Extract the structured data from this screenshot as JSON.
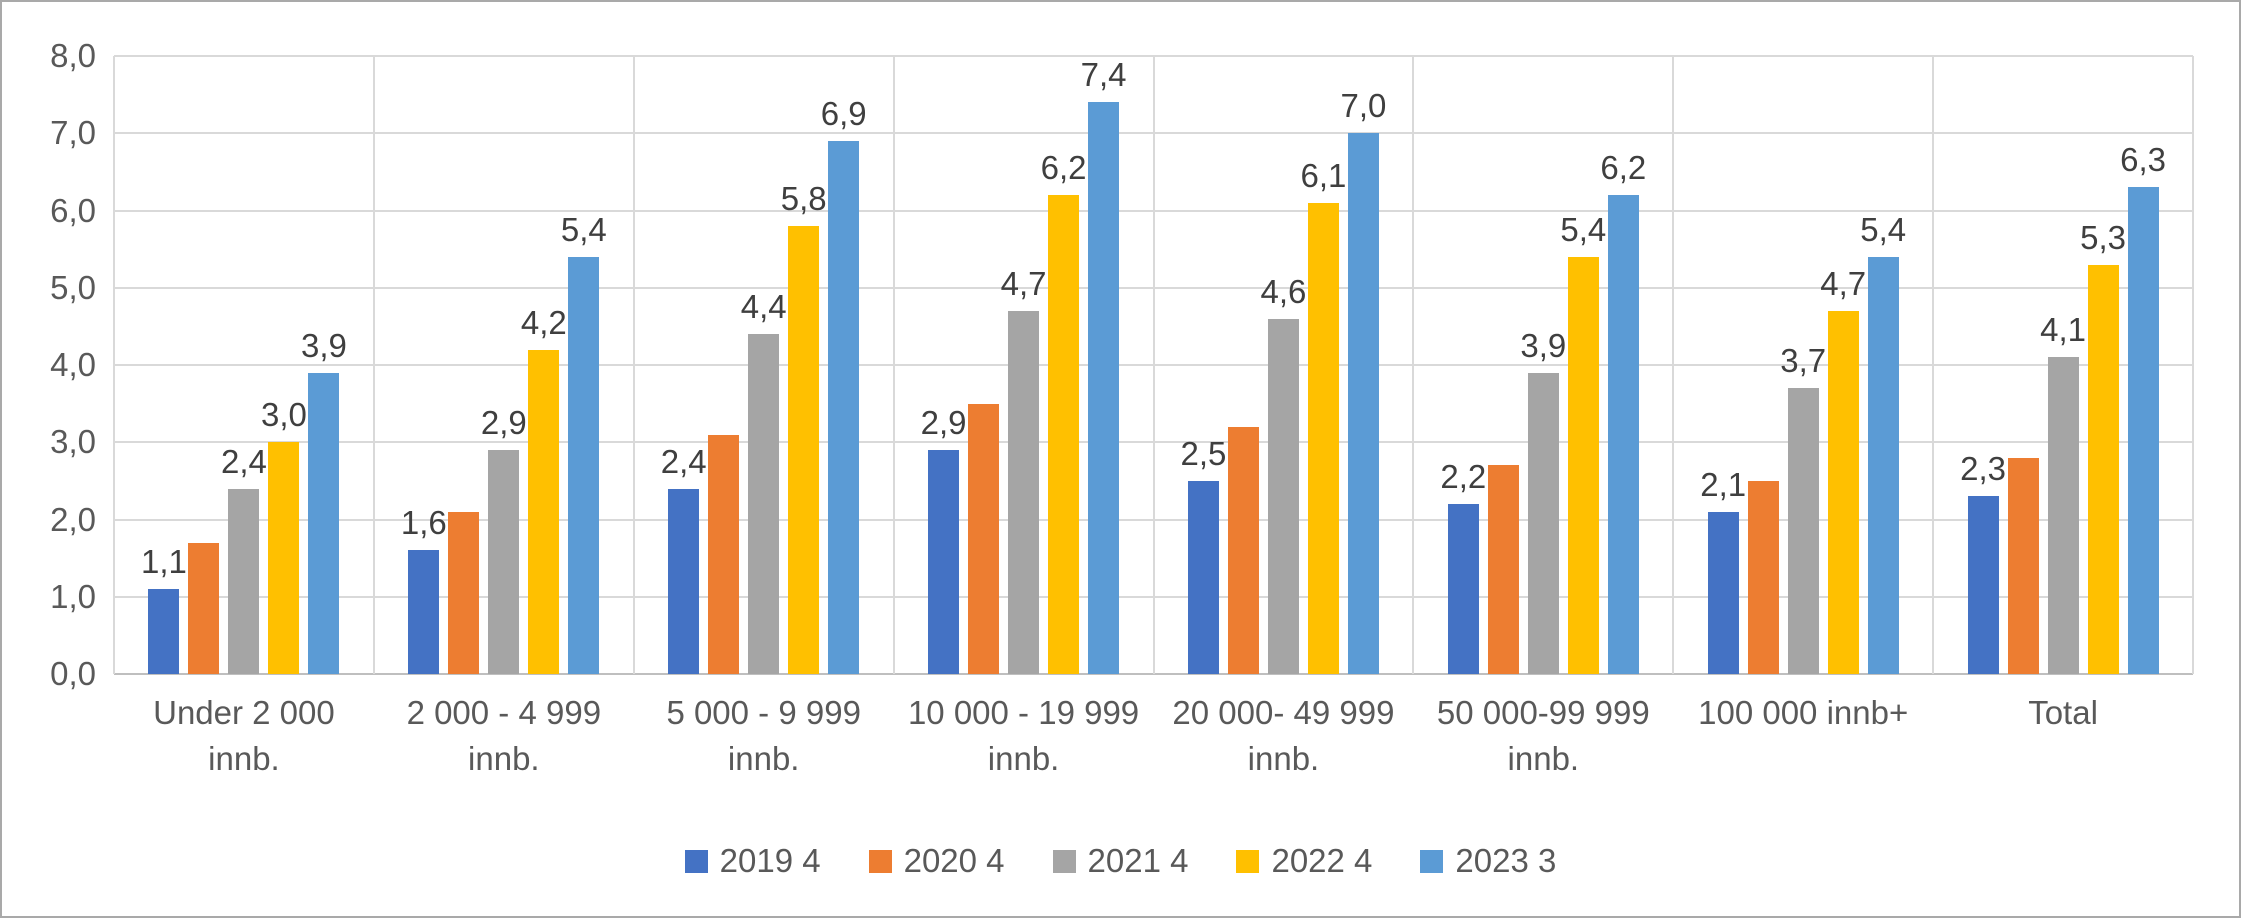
{
  "chart_data": {
    "type": "bar",
    "title": "",
    "xlabel": "",
    "ylabel": "",
    "ylim": [
      0,
      8
    ],
    "y_tick_labels": [
      "0,0",
      "1,0",
      "2,0",
      "3,0",
      "4,0",
      "5,0",
      "6,0",
      "7,0",
      "8,0"
    ],
    "decimal_separator": ",",
    "grid": true,
    "vertical_category_separators": true,
    "legend_position": "bottom",
    "categories": [
      "Under 2 000 innb.",
      "2 000 - 4 999 innb.",
      "5 000 - 9 999 innb.",
      "10 000 - 19 999 innb.",
      "20 000- 49 999 innb.",
      "50 000-99 999 innb.",
      "100 000 innb+",
      "Total"
    ],
    "category_lines": [
      [
        "Under 2 000",
        "innb."
      ],
      [
        "2 000 - 4 999",
        "innb."
      ],
      [
        "5 000 - 9 999",
        "innb."
      ],
      [
        "10 000 - 19 999",
        "innb."
      ],
      [
        "20 000- 49 999",
        "innb."
      ],
      [
        "50 000-99 999",
        "innb."
      ],
      [
        "100 000 innb+"
      ],
      [
        "Total"
      ]
    ],
    "series": [
      {
        "name": "2019 4",
        "color": "#4472C4",
        "show_labels": true,
        "values": [
          1.1,
          1.6,
          2.4,
          2.9,
          2.5,
          2.2,
          2.1,
          2.3
        ]
      },
      {
        "name": "2020 4",
        "color": "#ED7D31",
        "show_labels": false,
        "values": [
          1.7,
          2.1,
          3.1,
          3.5,
          3.2,
          2.7,
          2.5,
          2.8
        ]
      },
      {
        "name": "2021 4",
        "color": "#A5A5A5",
        "show_labels": true,
        "values": [
          2.4,
          2.9,
          4.4,
          4.7,
          4.6,
          3.9,
          3.7,
          4.1
        ]
      },
      {
        "name": "2022 4",
        "color": "#FFC000",
        "show_labels": true,
        "values": [
          3.0,
          4.2,
          5.8,
          6.2,
          6.1,
          5.4,
          4.7,
          5.3
        ]
      },
      {
        "name": "2023 3",
        "color": "#5B9BD5",
        "show_labels": true,
        "values": [
          3.9,
          5.4,
          6.9,
          7.4,
          7.0,
          6.2,
          5.4,
          6.3
        ]
      }
    ],
    "colors": {
      "gridline": "#D9D9D9",
      "axis_line": "#BFBFBF",
      "axis_text": "#595959",
      "data_label_text": "#3F3F3F",
      "frame_border": "#A9A9A9",
      "background": "#FFFFFF"
    }
  }
}
